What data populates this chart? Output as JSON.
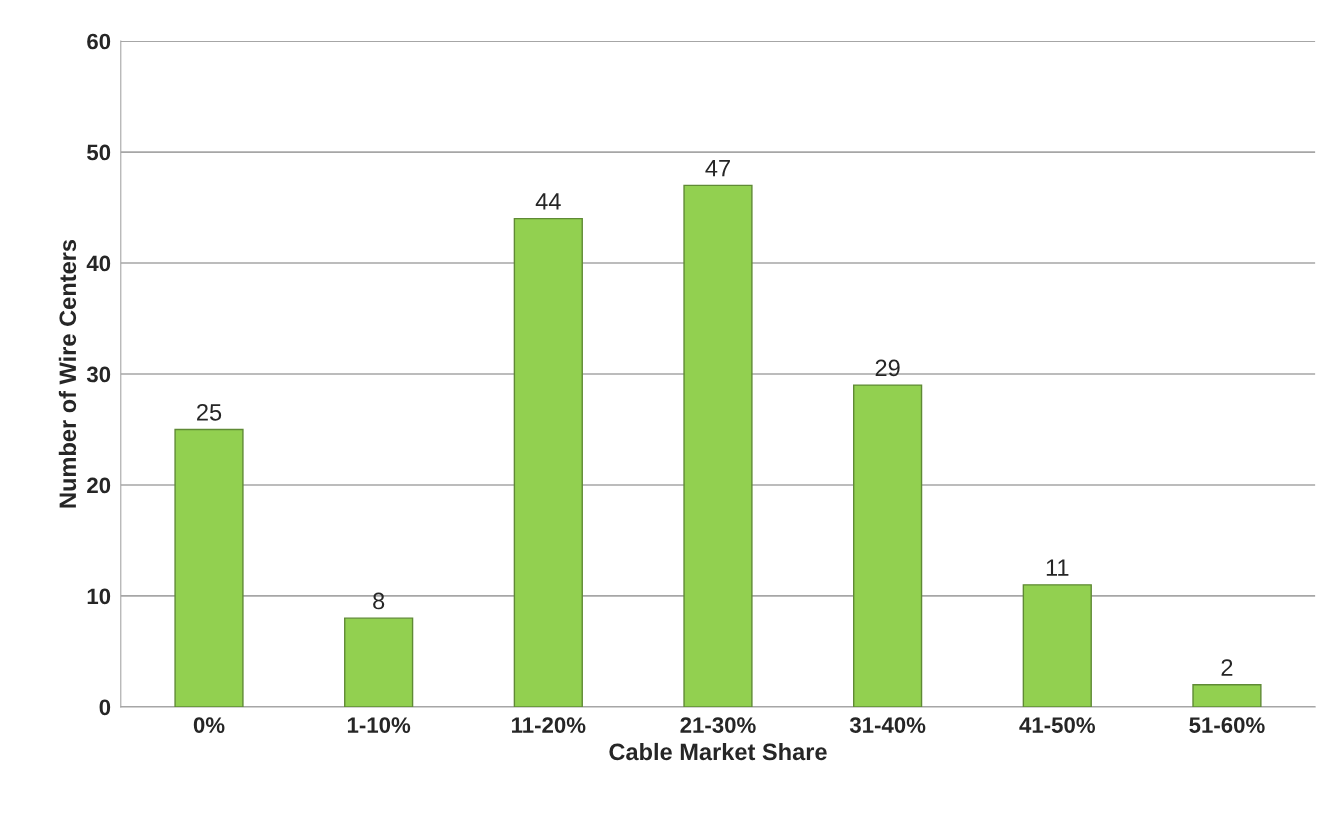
{
  "chart_data": {
    "type": "bar",
    "xlabel": "Cable Market Share",
    "ylabel": "Number of Wire Centers",
    "categories": [
      "0%",
      "1-10%",
      "11-20%",
      "21-30%",
      "31-40%",
      "41-50%",
      "51-60%"
    ],
    "values": [
      25,
      8,
      44,
      47,
      29,
      11,
      2
    ],
    "color": "#92d050",
    "ylim": [
      0,
      60
    ],
    "yticks": [
      0,
      10,
      20,
      30,
      40,
      50,
      60
    ],
    "grid": "y",
    "data_labels": true
  }
}
